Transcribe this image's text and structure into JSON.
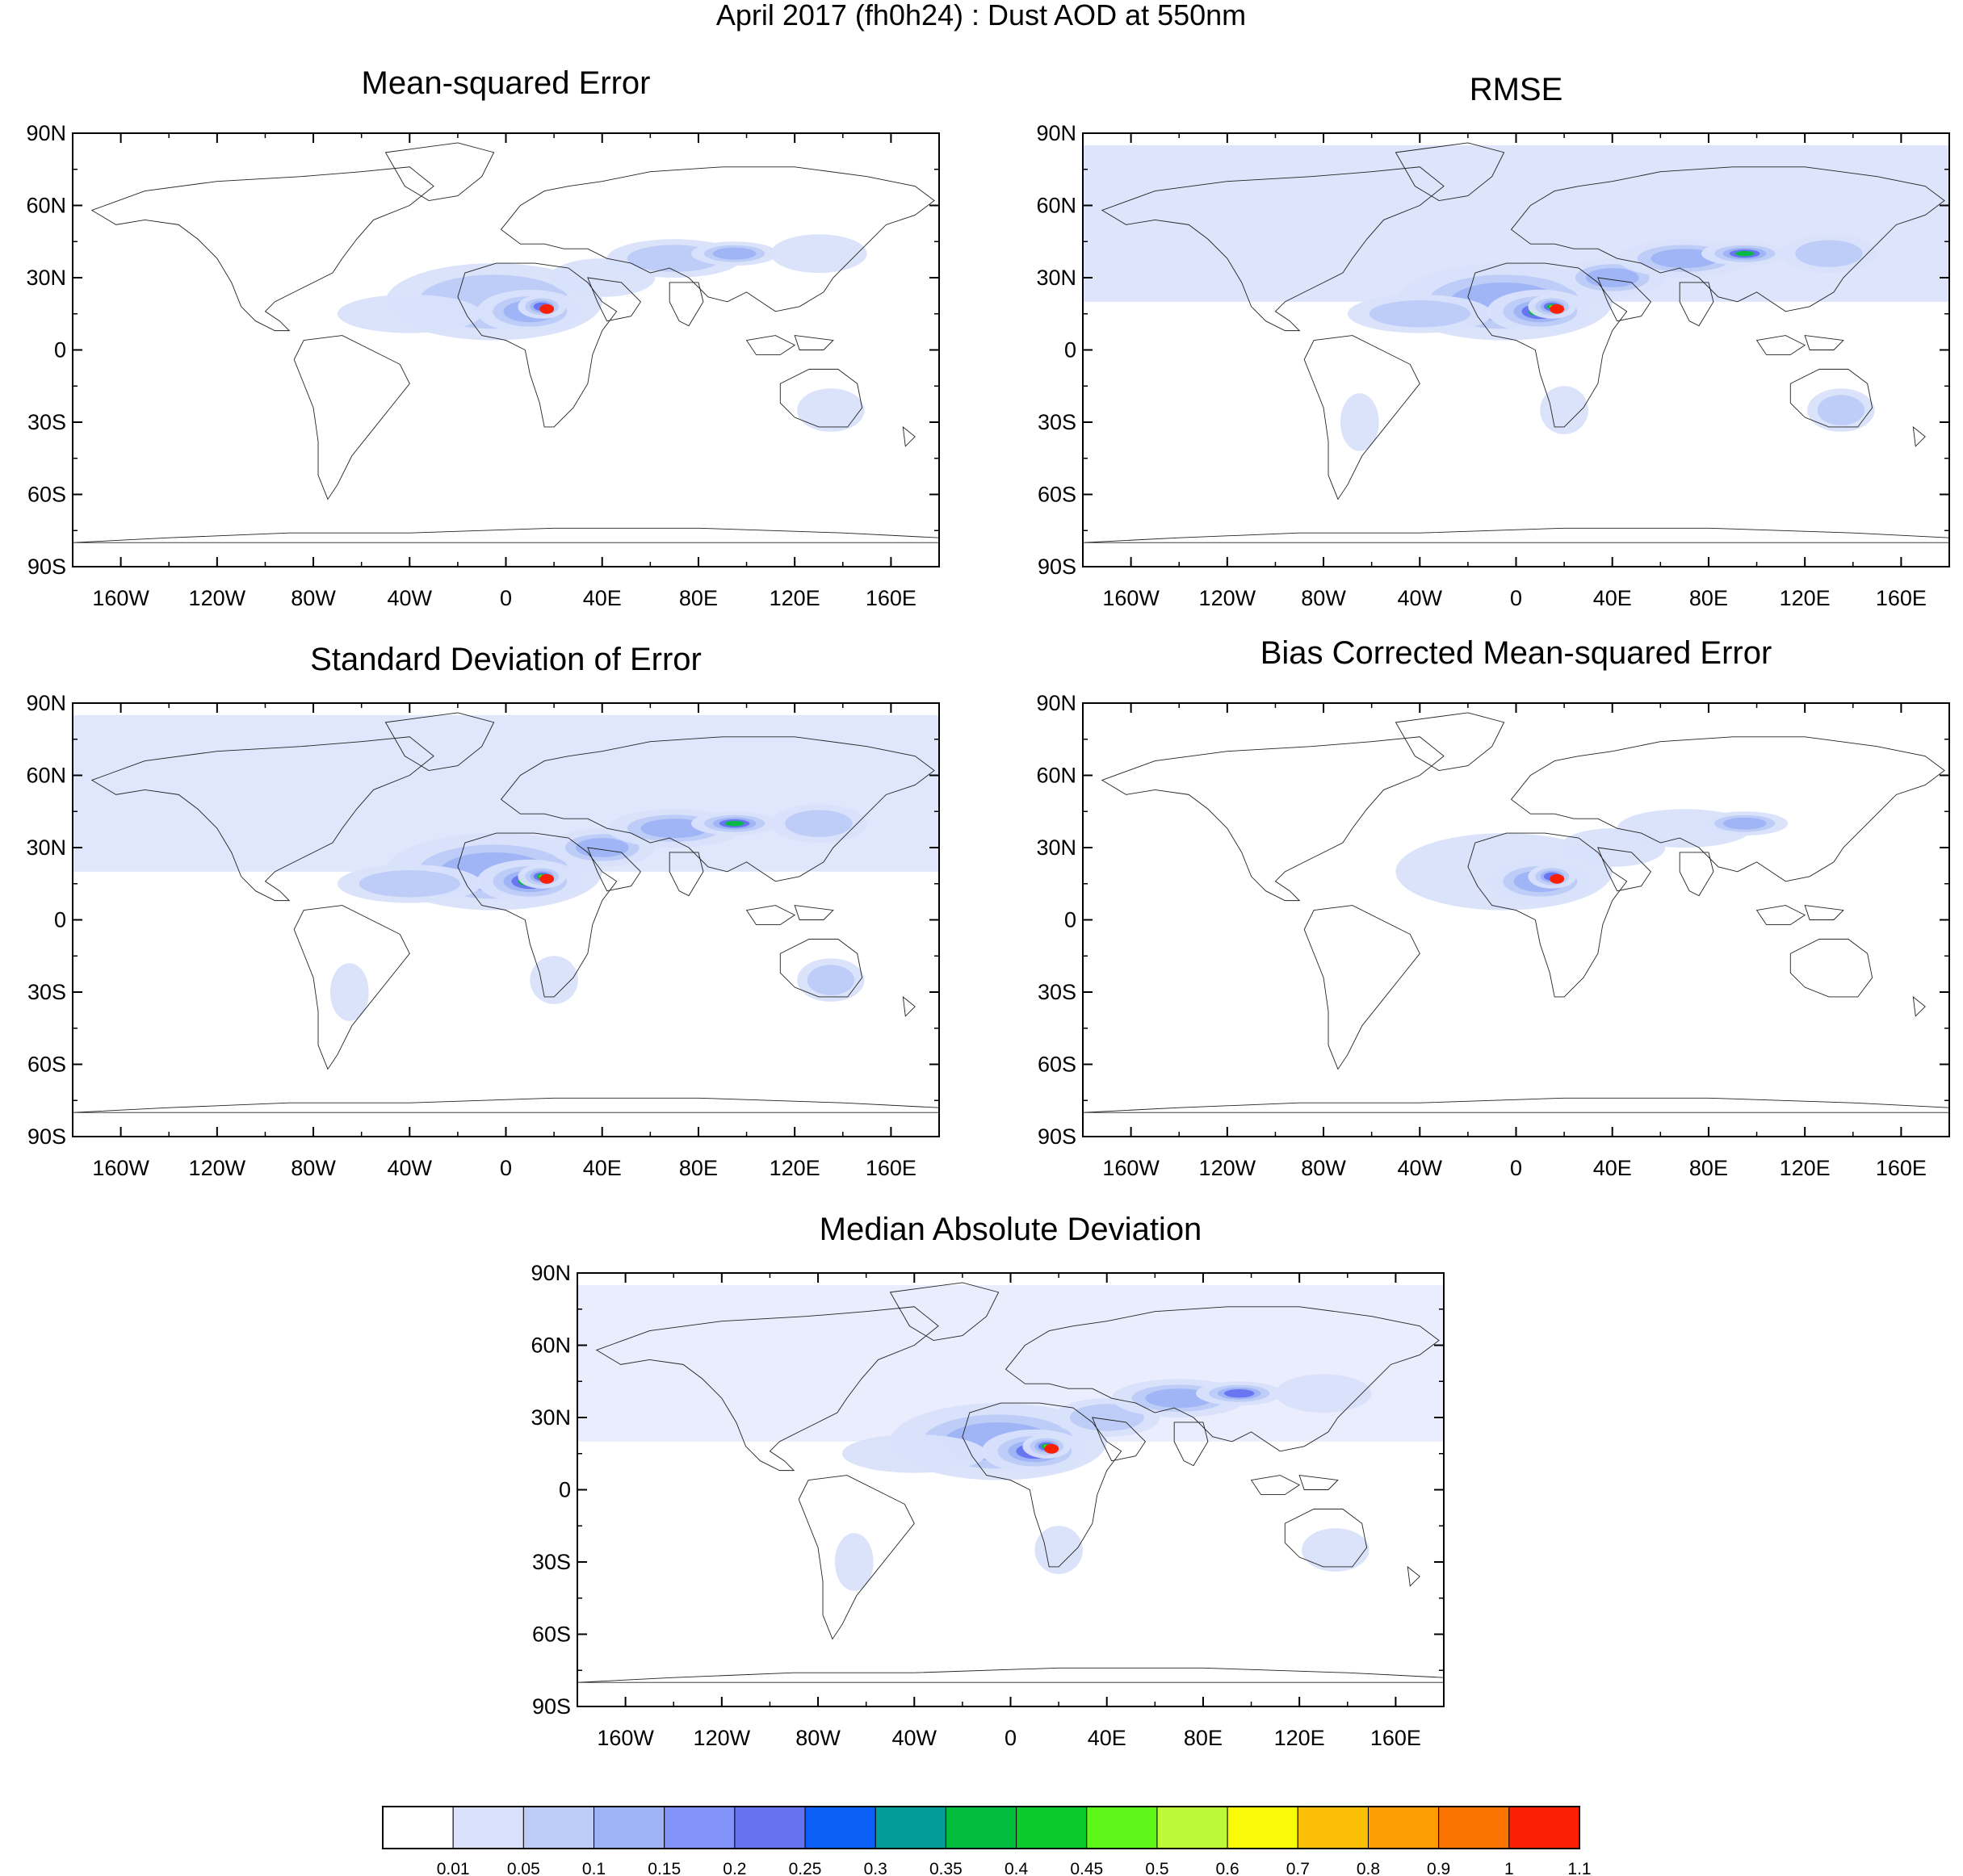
{
  "figure_title": "April 2017 (fh0h24) : Dust AOD at 550nm",
  "lat_labels": [
    "90N",
    "60N",
    "30N",
    "0",
    "30S",
    "60S",
    "90S"
  ],
  "lon_labels": [
    "160W",
    "120W",
    "80W",
    "40W",
    "0",
    "40E",
    "80E",
    "120E",
    "160E"
  ],
  "lon_values": [
    -160,
    -120,
    -80,
    -40,
    0,
    40,
    80,
    120,
    160
  ],
  "lat_values": [
    90,
    60,
    30,
    0,
    -30,
    -60,
    -90
  ],
  "panels": [
    {
      "title": "Mean-squared Error",
      "intensity": 0.45
    },
    {
      "title": "RMSE",
      "intensity": 1.0
    },
    {
      "title": "Standard Deviation of Error",
      "intensity": 0.9
    },
    {
      "title": "Bias Corrected Mean-squared Error",
      "intensity": 0.35
    },
    {
      "title": "Median Absolute Deviation",
      "intensity": 0.65
    }
  ],
  "colorbar": {
    "colors": [
      "#ffffff",
      "#d9e1fb",
      "#bccbf7",
      "#9db3f6",
      "#8193f6",
      "#6673f0",
      "#0d5ef5",
      "#049b9b",
      "#03bd3d",
      "#0bca2b",
      "#5df71a",
      "#bdf938",
      "#fafa08",
      "#fbbf05",
      "#fb9d03",
      "#fb7401",
      "#fb1f03"
    ],
    "labels": [
      "0.01",
      "0.05",
      "0.1",
      "0.15",
      "0.2",
      "0.25",
      "0.3",
      "0.35",
      "0.4",
      "0.45",
      "0.5",
      "0.6",
      "0.7",
      "0.8",
      "0.9",
      "1",
      "1.1"
    ]
  }
}
